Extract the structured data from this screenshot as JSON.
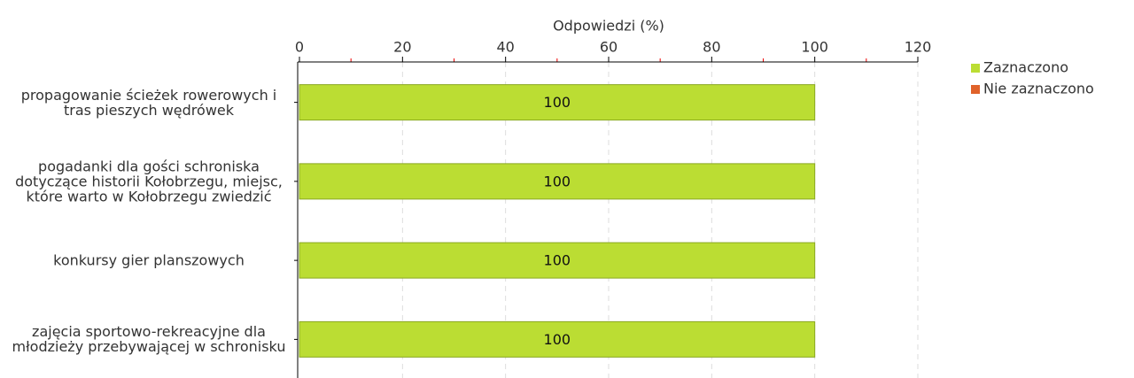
{
  "chart_data": {
    "type": "bar",
    "orientation": "horizontal",
    "stacked": true,
    "xlabel": "Odpowiedzi (%)",
    "categories": [
      "propagowanie ścieżek rowerowych i tras pieszych wędrówek",
      "pogadanki dla gości schroniska dotyczące historii Kołobrzegu, miejsc, które warto w Kołobrzegu zwiedzić",
      "konkursy gier planszowych",
      "zajęcia sportowo-rekreacyjne dla młodzieży przebywającej w schronisku"
    ],
    "series": [
      {
        "name": "Zaznaczono",
        "color": "#bbdd33",
        "values": [
          100,
          100,
          100,
          100
        ]
      },
      {
        "name": "Nie zaznaczono",
        "color": "#e0622a",
        "values": [
          0,
          0,
          0,
          0
        ]
      }
    ],
    "xlim": [
      0,
      120
    ],
    "xticks": [
      0,
      20,
      40,
      60,
      80,
      100,
      120
    ],
    "xminorticks": [
      10,
      30,
      50,
      70,
      90,
      110
    ],
    "grid": true,
    "legend": "right"
  }
}
